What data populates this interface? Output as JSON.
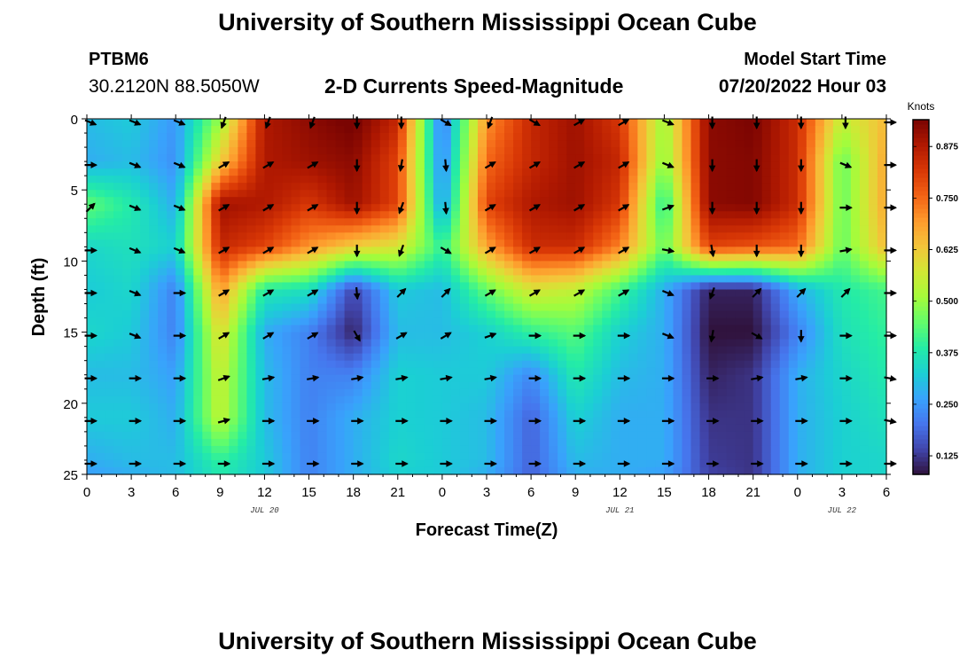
{
  "header": {
    "title": "University of Southern Mississippi Ocean Cube",
    "station": "PTBM6",
    "coords": "30.2120N  88.5050W",
    "subtitle": "2-D Currents Speed-Magnitude",
    "model_start_label": "Model Start Time",
    "model_start_time": "07/20/2022 Hour 03"
  },
  "footer": {
    "title": "University of Southern Mississippi Ocean Cube"
  },
  "colors": {
    "colormap": [
      "#30123b",
      "#4145ab",
      "#4675ed",
      "#39a2fc",
      "#1bcfd4",
      "#24eca6",
      "#61fc6c",
      "#a4fc3b",
      "#d1e834",
      "#f3c63a",
      "#fe9b2d",
      "#f36315",
      "#d93806",
      "#b11901",
      "#7a0402"
    ],
    "arrow": "#000000"
  },
  "chart_data": {
    "type": "heatmap",
    "title": "2-D Currents Speed-Magnitude",
    "xlabel": "Forecast Time(Z)",
    "ylabel": "Depth (ft)",
    "x_range": [
      0,
      54
    ],
    "y_range": [
      0,
      25
    ],
    "x_ticks": [
      0,
      3,
      6,
      9,
      12,
      15,
      18,
      21,
      24,
      27,
      30,
      33,
      36,
      39,
      42,
      45,
      48,
      51,
      54
    ],
    "x_tick_labels": [
      "0",
      "3",
      "6",
      "9",
      "12",
      "15",
      "18",
      "21",
      "0",
      "3",
      "6",
      "9",
      "12",
      "15",
      "18",
      "21",
      "0",
      "3",
      "6"
    ],
    "y_ticks": [
      0,
      5,
      10,
      15,
      20,
      25
    ],
    "y_tick_labels": [
      "0",
      "5",
      "10",
      "15",
      "20",
      "25"
    ],
    "date_labels": [
      {
        "x": 12,
        "label": "JUL 20"
      },
      {
        "x": 36,
        "label": "JUL 21"
      },
      {
        "x": 51,
        "label": "JUL 22"
      }
    ],
    "colorbar": {
      "unit": "Knots",
      "min": 0.08,
      "max": 0.94,
      "tick_values": [
        0.125,
        0.25,
        0.375,
        0.5,
        0.625,
        0.75,
        0.875
      ],
      "tick_labels": [
        "0.125",
        "0.250",
        "0.375",
        "0.500",
        "0.625",
        "0.750",
        "0.875"
      ]
    },
    "times": [
      0,
      3,
      6,
      9,
      12,
      15,
      18,
      21,
      24,
      27,
      30,
      33,
      36,
      39,
      42,
      45,
      48,
      51,
      54
    ],
    "depths": [
      0,
      3,
      6,
      9,
      12,
      15,
      18,
      21,
      24,
      25
    ],
    "speed": [
      [
        0.3,
        0.28,
        0.45,
        0.34,
        0.32,
        0.34,
        0.3,
        0.32,
        0.28,
        0.26
      ],
      [
        0.32,
        0.3,
        0.38,
        0.36,
        0.34,
        0.32,
        0.3,
        0.32,
        0.3,
        0.28
      ],
      [
        0.25,
        0.24,
        0.28,
        0.33,
        0.22,
        0.22,
        0.26,
        0.28,
        0.3,
        0.3
      ],
      [
        0.5,
        0.62,
        0.9,
        0.85,
        0.7,
        0.6,
        0.56,
        0.55,
        0.4,
        0.38
      ],
      [
        0.88,
        0.88,
        0.88,
        0.8,
        0.38,
        0.28,
        0.3,
        0.3,
        0.32,
        0.32
      ],
      [
        0.92,
        0.9,
        0.82,
        0.7,
        0.36,
        0.22,
        0.22,
        0.22,
        0.22,
        0.22
      ],
      [
        0.95,
        0.92,
        0.9,
        0.62,
        0.14,
        0.1,
        0.22,
        0.28,
        0.28,
        0.28
      ],
      [
        0.85,
        0.8,
        0.8,
        0.58,
        0.32,
        0.3,
        0.33,
        0.33,
        0.34,
        0.33
      ],
      [
        0.2,
        0.22,
        0.25,
        0.4,
        0.3,
        0.3,
        0.32,
        0.32,
        0.32,
        0.32
      ],
      [
        0.7,
        0.75,
        0.8,
        0.68,
        0.45,
        0.33,
        0.32,
        0.3,
        0.3,
        0.28
      ],
      [
        0.85,
        0.85,
        0.88,
        0.84,
        0.58,
        0.4,
        0.23,
        0.18,
        0.18,
        0.18
      ],
      [
        0.9,
        0.9,
        0.9,
        0.84,
        0.55,
        0.44,
        0.38,
        0.33,
        0.3,
        0.28
      ],
      [
        0.82,
        0.85,
        0.82,
        0.72,
        0.42,
        0.33,
        0.3,
        0.28,
        0.28,
        0.28
      ],
      [
        0.5,
        0.48,
        0.38,
        0.45,
        0.28,
        0.28,
        0.28,
        0.28,
        0.28,
        0.26
      ],
      [
        0.92,
        0.92,
        0.92,
        0.8,
        0.1,
        0.08,
        0.1,
        0.12,
        0.13,
        0.14
      ],
      [
        0.94,
        0.93,
        0.93,
        0.78,
        0.1,
        0.08,
        0.12,
        0.12,
        0.12,
        0.12
      ],
      [
        0.84,
        0.84,
        0.84,
        0.75,
        0.28,
        0.22,
        0.28,
        0.28,
        0.28,
        0.28
      ],
      [
        0.55,
        0.45,
        0.45,
        0.45,
        0.38,
        0.36,
        0.34,
        0.33,
        0.33,
        0.33
      ],
      [
        0.65,
        0.68,
        0.68,
        0.65,
        0.42,
        0.4,
        0.38,
        0.36,
        0.34,
        0.34
      ]
    ],
    "arrow_dir": [
      [
        112,
        90,
        45,
        90,
        90,
        90,
        90,
        90,
        90,
        90
      ],
      [
        112,
        112,
        112,
        112,
        112,
        112,
        90,
        90,
        90,
        90
      ],
      [
        112,
        112,
        112,
        112,
        90,
        90,
        90,
        90,
        90,
        90
      ],
      [
        200,
        60,
        60,
        60,
        60,
        60,
        70,
        75,
        90,
        90
      ],
      [
        200,
        60,
        60,
        60,
        60,
        60,
        80,
        90,
        90,
        90
      ],
      [
        200,
        60,
        60,
        60,
        60,
        60,
        80,
        90,
        90,
        90
      ],
      [
        180,
        180,
        180,
        180,
        175,
        150,
        80,
        90,
        90,
        90
      ],
      [
        180,
        190,
        200,
        200,
        45,
        60,
        80,
        90,
        90,
        90
      ],
      [
        120,
        175,
        175,
        120,
        45,
        60,
        80,
        90,
        90,
        90
      ],
      [
        200,
        60,
        60,
        60,
        60,
        70,
        80,
        90,
        90,
        90
      ],
      [
        120,
        60,
        60,
        60,
        60,
        90,
        90,
        90,
        90,
        90
      ],
      [
        60,
        60,
        60,
        60,
        60,
        90,
        90,
        90,
        90,
        90
      ],
      [
        60,
        60,
        60,
        60,
        60,
        90,
        90,
        90,
        90,
        90
      ],
      [
        112,
        112,
        70,
        100,
        112,
        112,
        90,
        90,
        90,
        90
      ],
      [
        180,
        180,
        180,
        170,
        200,
        190,
        90,
        90,
        90,
        90
      ],
      [
        180,
        180,
        180,
        180,
        45,
        120,
        80,
        90,
        90,
        90
      ],
      [
        180,
        180,
        180,
        180,
        45,
        180,
        80,
        90,
        90,
        90
      ],
      [
        180,
        112,
        90,
        80,
        45,
        90,
        90,
        90,
        90,
        90
      ],
      [
        90,
        90,
        90,
        90,
        90,
        90,
        100,
        100,
        90,
        90
      ]
    ]
  }
}
